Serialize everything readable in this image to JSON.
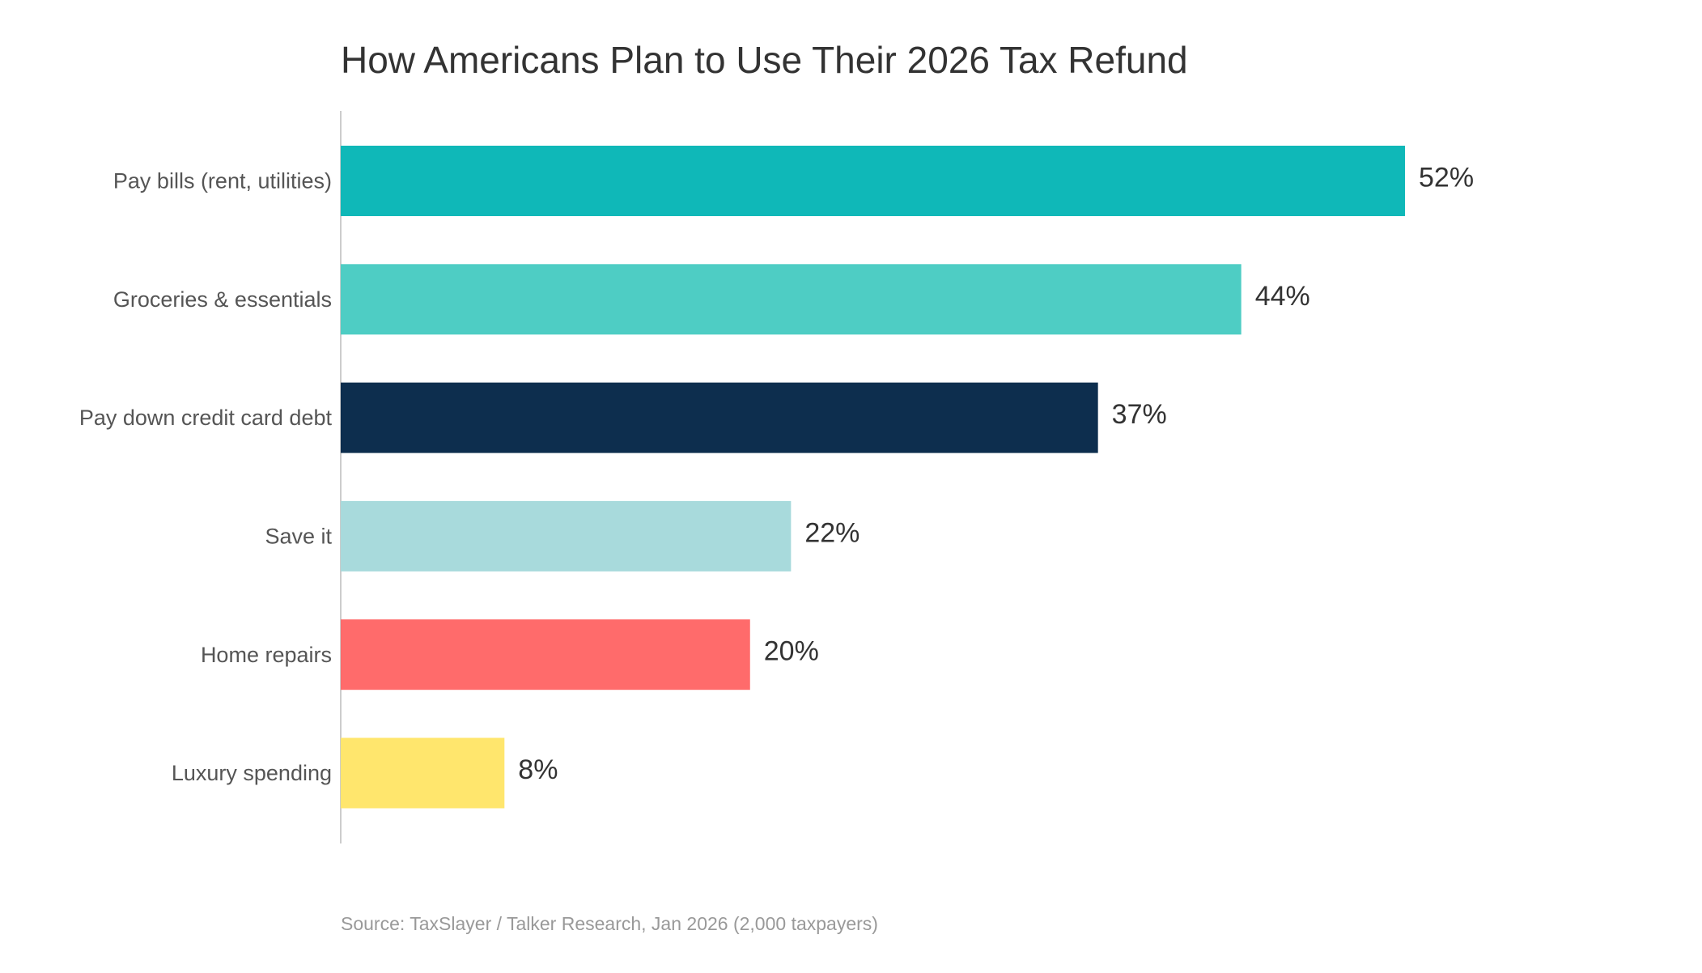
{
  "chart_data": {
    "type": "bar",
    "orientation": "horizontal",
    "title": "How Americans Plan to Use Their 2026 Tax Refund",
    "categories": [
      "Pay bills (rent, utilities)",
      "Groceries & essentials",
      "Pay down credit card debt",
      "Save it",
      "Home repairs",
      "Luxury spending"
    ],
    "values": [
      52,
      44,
      37,
      22,
      20,
      8
    ],
    "value_labels": [
      "52%",
      "44%",
      "37%",
      "22%",
      "20%",
      "8%"
    ],
    "colors": [
      "#0fb8b8",
      "#4ecdc4",
      "#0d2e4e",
      "#a8dadc",
      "#ff6b6b",
      "#ffe66d"
    ],
    "source": "Source: TaxSlayer / Talker Research, Jan 2026 (2,000 taxpayers)"
  }
}
